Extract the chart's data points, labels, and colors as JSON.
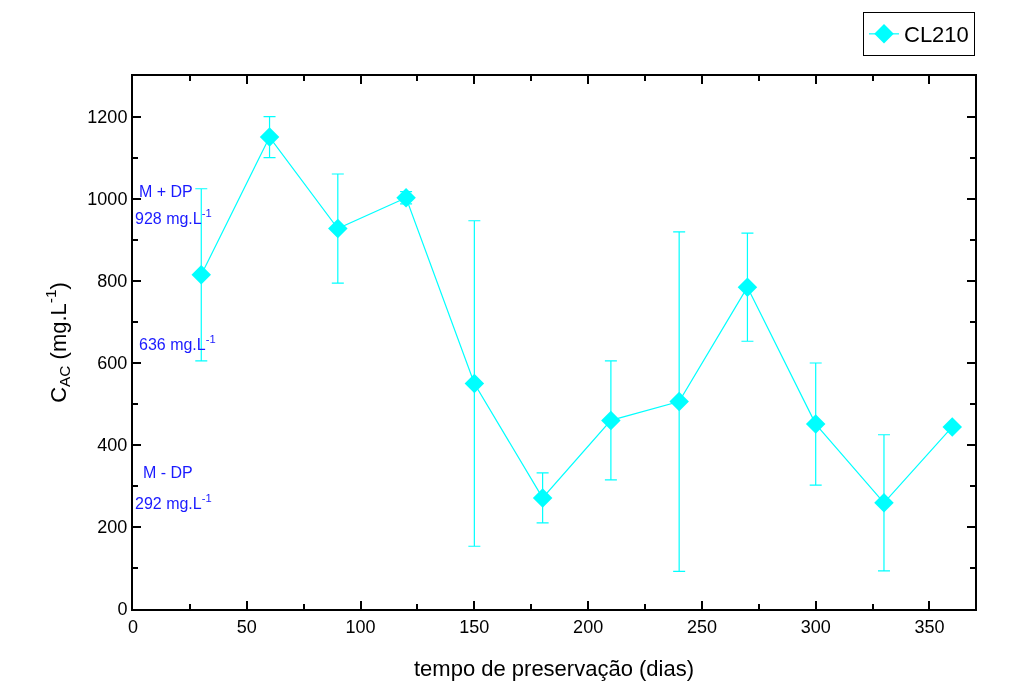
{
  "chart_data": {
    "type": "line",
    "xlabel": "tempo de preservação (dias)",
    "ylabel": "C$_{AC}$ (mg.L$^{-1}$)",
    "x": [
      30,
      60,
      90,
      120,
      150,
      180,
      210,
      240,
      270,
      300,
      330,
      360
    ],
    "series": [
      {
        "name": "CL210",
        "color": "#00ffff",
        "values": [
          815,
          1151,
          928,
          1003,
          550,
          271,
          460,
          506,
          785,
          451,
          259,
          444
        ],
        "errors": [
          210,
          50,
          133,
          15,
          397,
          61,
          145,
          414,
          132,
          149,
          166,
          null
        ]
      }
    ],
    "xlim": [
      0,
      370
    ],
    "ylim": [
      0,
      1300
    ],
    "xticks": [
      0,
      50,
      100,
      150,
      200,
      250,
      300,
      350
    ],
    "yticks": [
      0,
      200,
      400,
      600,
      800,
      1000,
      1200
    ],
    "annotations": [
      "M + DP",
      "928 mg.L$^{-1}$",
      "636 mg.L$^{-1}$",
      "M - DP",
      "292 mg.L$^{-1}$"
    ],
    "marker": "diamond",
    "line_style": "solid",
    "legend": "top right"
  }
}
